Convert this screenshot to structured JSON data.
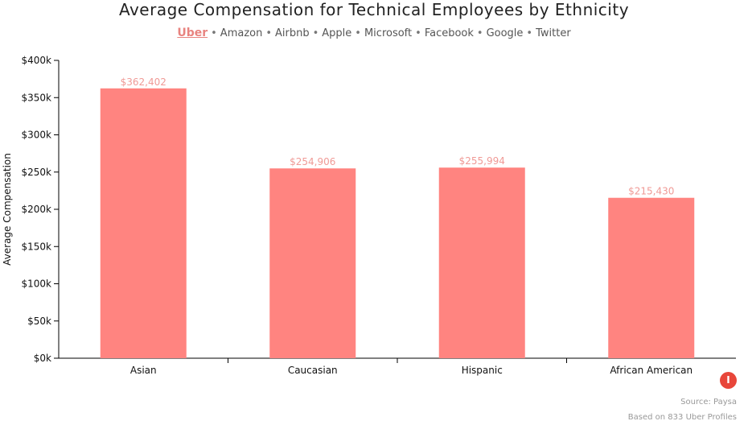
{
  "title": "Average Compensation for Technical Employees by Ethnicity",
  "companies": [
    {
      "label": "Uber",
      "active": true
    },
    {
      "label": "Amazon",
      "active": false
    },
    {
      "label": "Airbnb",
      "active": false
    },
    {
      "label": "Apple",
      "active": false
    },
    {
      "label": "Microsoft",
      "active": false
    },
    {
      "label": "Facebook",
      "active": false
    },
    {
      "label": "Google",
      "active": false
    },
    {
      "label": "Twitter",
      "active": false
    }
  ],
  "footer": {
    "source": "Source: Paysa",
    "note": "Based on 833 Uber Profiles",
    "logo": "I"
  },
  "chart_data": {
    "type": "bar",
    "categories": [
      "Asian",
      "Caucasian",
      "Hispanic",
      "African American"
    ],
    "values": [
      362402,
      254906,
      255994,
      215430
    ],
    "data_labels": [
      "$362,402",
      "$254,906",
      "$255,994",
      "$215,430"
    ],
    "ylabel": "Average Compensation",
    "ylim": [
      0,
      400000
    ],
    "yticks": [
      "$0k",
      "$50k",
      "$100k",
      "$150k",
      "$200k",
      "$250k",
      "$300k",
      "$350k",
      "$400k"
    ],
    "bar_color": "#ff8480",
    "label_color": "#f09a96",
    "grid": false
  }
}
